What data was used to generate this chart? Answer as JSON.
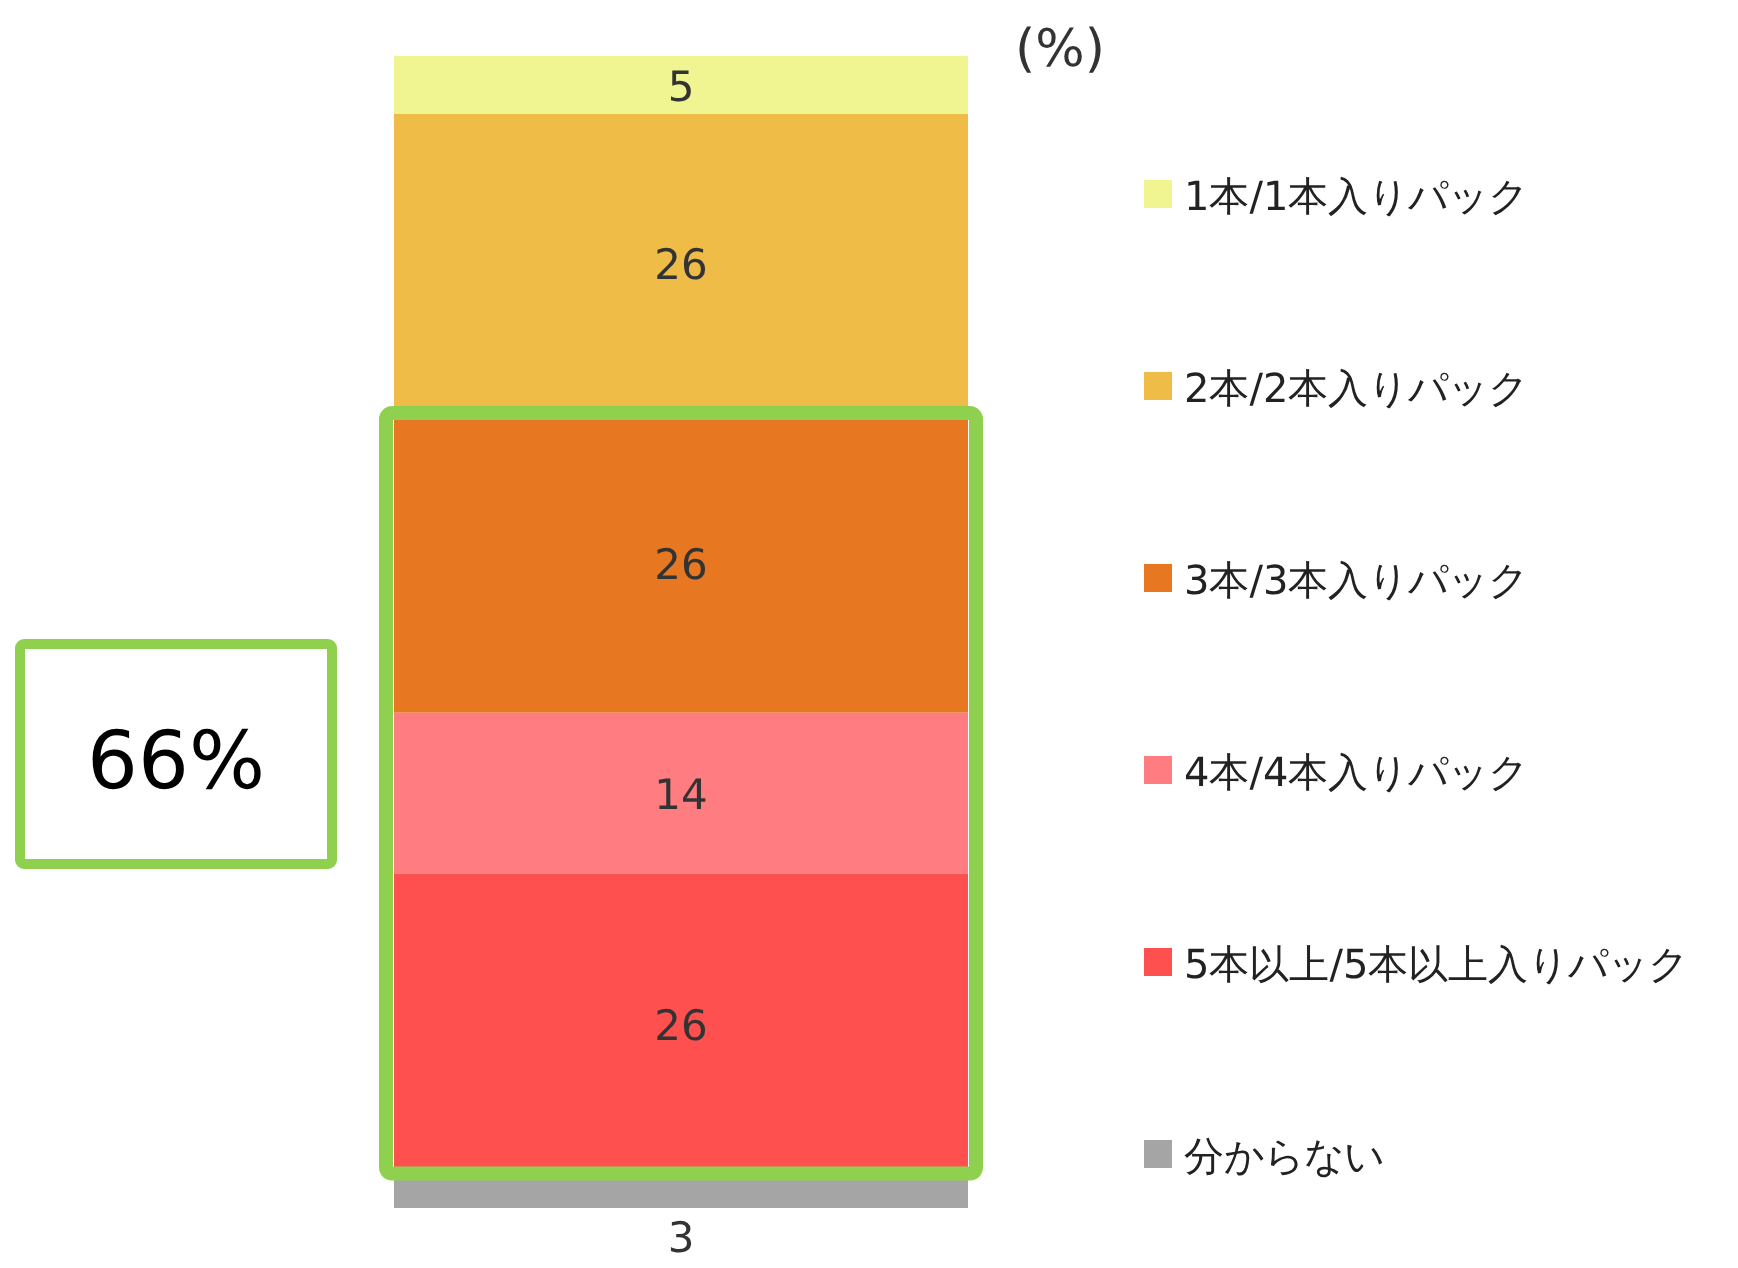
{
  "chart_data": {
    "type": "bar",
    "stacked": true,
    "categories": [
      null
    ],
    "ylabel": "(%)",
    "series": [
      {
        "name": "分からない",
        "color": "#a5a5a5",
        "values": [
          3
        ]
      },
      {
        "name": "5本以上/5本以上入りパック",
        "color": "#ff5050",
        "values": [
          26
        ]
      },
      {
        "name": "4本/4本入りパック",
        "color": "#ff7c80",
        "values": [
          14
        ]
      },
      {
        "name": "3本/3本入りパック",
        "color": "#e87722",
        "values": [
          26
        ]
      },
      {
        "name": "2本/2本入りパック",
        "color": "#f0bc48",
        "values": [
          26
        ]
      },
      {
        "name": "1本/1本入りパック",
        "color": "#f0f591",
        "values": [
          5
        ]
      }
    ],
    "data_labels": true,
    "legend": "right",
    "annotations": [
      "66%"
    ]
  }
}
